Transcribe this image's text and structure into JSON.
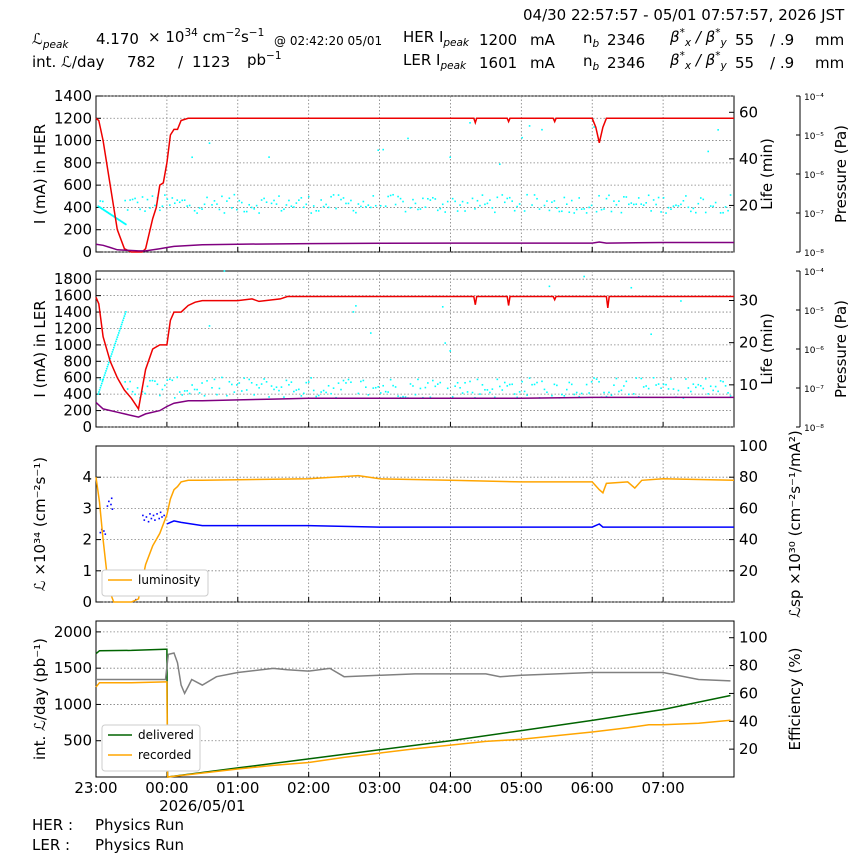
{
  "header": {
    "time_range": "04/30 22:57:57 - 05/01 07:57:57, 2026 JST",
    "lpeak_label": "ℒ",
    "lpeak_sub": "peak",
    "lpeak_value": "4.170",
    "lpeak_unit_prefix": "× 10",
    "lpeak_unit_exp": "34",
    "lpeak_unit_rest": "cm",
    "lpeak_unit_cm_exp": "−2",
    "lpeak_unit_s": "s",
    "lpeak_unit_s_exp": "−1",
    "lpeak_time": "@ 02:42:20 05/01",
    "intl_label": "int. ℒ/day",
    "intl_value1": "782",
    "intl_sep": "/",
    "intl_value2": "1123",
    "intl_unit": "pb",
    "intl_unit_exp": "−1",
    "her_label": "HER I",
    "her_sub": "peak",
    "her_value": "1200",
    "ler_label": "LER I",
    "ler_sub": "peak",
    "ler_value": "1601",
    "ma_unit": "mA",
    "nb_label": "n",
    "nb_sub": "b",
    "her_nb": "2346",
    "ler_nb": "2346",
    "beta_label": "β",
    "beta_x_sub": "x",
    "beta_y_sub": "y",
    "beta_star": "*",
    "beta_sep": "/",
    "her_beta_x": "55",
    "her_beta_y": "/ .9",
    "ler_beta_x": "55",
    "ler_beta_y": "/ .9",
    "mm_unit": "mm"
  },
  "footer": {
    "her_label": "HER :",
    "her_status": "Physics Run",
    "ler_label": "LER :",
    "ler_status": "Physics Run"
  },
  "colors": {
    "red": "#ee0000",
    "purple": "#800080",
    "cyan": "#00ffff",
    "orange": "#ffa500",
    "blue": "#0000ff",
    "green": "#006400",
    "gray": "#808080",
    "grid": "#808080"
  },
  "chart_data": [
    {
      "type": "line",
      "name": "her-panel",
      "ylabel": "I (mA) in HER",
      "ylim": [
        0,
        1400
      ],
      "yticks": [
        0,
        200,
        400,
        600,
        800,
        1000,
        1200,
        1400
      ],
      "y2label": "Life (min)",
      "y2lim": [
        0,
        67
      ],
      "y2ticks": [
        20,
        40,
        60
      ],
      "y3label": "Pressure (Pa)",
      "y3ticks": [
        "10⁻⁴",
        "10⁻⁵",
        "10⁻⁶",
        "10⁻⁷",
        "10⁻⁸"
      ],
      "xlim_hours": [
        -1.0,
        8.0
      ],
      "series": [
        {
          "color": "red",
          "x": [
            -1.0,
            -0.96,
            -0.9,
            -0.8,
            -0.7,
            -0.6,
            -0.5,
            -0.42,
            -0.35,
            -0.3,
            -0.2,
            -0.15,
            -0.1,
            -0.05,
            0.0,
            0.05,
            0.1,
            0.15,
            0.2,
            0.3,
            0.4,
            1.0,
            2.0,
            3.0,
            4.33,
            4.35,
            4.37,
            4.8,
            4.82,
            4.84,
            5.45,
            5.47,
            5.49,
            6.0,
            6.05,
            6.1,
            6.15,
            6.2,
            6.5,
            7.0,
            8.0
          ],
          "y": [
            1200,
            1180,
            1000,
            600,
            200,
            30,
            0,
            0,
            0,
            30,
            300,
            400,
            600,
            620,
            800,
            1050,
            1100,
            1100,
            1180,
            1200,
            1200,
            1200,
            1200,
            1200,
            1200,
            1160,
            1200,
            1200,
            1170,
            1200,
            1200,
            1170,
            1200,
            1200,
            1120,
            980,
            1120,
            1200,
            1200,
            1200,
            1200
          ]
        },
        {
          "color": "purple",
          "x": [
            -1.0,
            -0.9,
            -0.8,
            -0.7,
            -0.4,
            -0.3,
            -0.1,
            0.0,
            0.1,
            0.5,
            1.0,
            2.0,
            3.0,
            4.0,
            5.0,
            6.0,
            6.1,
            6.2,
            7.0,
            8.0
          ],
          "y": [
            70,
            60,
            40,
            20,
            10,
            10,
            30,
            40,
            50,
            65,
            70,
            75,
            78,
            80,
            80,
            80,
            90,
            80,
            85,
            85
          ]
        }
      ],
      "scatter_y2": {
        "color": "cyan",
        "base": 21,
        "spread": 4,
        "sparse": 36
      }
    },
    {
      "type": "line",
      "name": "ler-panel",
      "ylabel": "I (mA) in LER",
      "ylim": [
        0,
        1900
      ],
      "yticks": [
        0,
        200,
        400,
        600,
        800,
        1000,
        1200,
        1400,
        1600,
        1800
      ],
      "y2label": "Life (min)",
      "y2lim": [
        0,
        37
      ],
      "y2ticks": [
        10,
        20,
        30
      ],
      "y3label": "Pressure (Pa)",
      "y3ticks": [
        "10⁻⁴",
        "10⁻⁵",
        "10⁻⁶",
        "10⁻⁷",
        "10⁻⁸"
      ],
      "xlim_hours": [
        -1.0,
        8.0
      ],
      "series": [
        {
          "color": "red",
          "x": [
            -1.0,
            -0.96,
            -0.9,
            -0.8,
            -0.7,
            -0.6,
            -0.5,
            -0.4,
            -0.3,
            -0.2,
            -0.1,
            0.0,
            0.05,
            0.1,
            0.15,
            0.2,
            0.3,
            0.4,
            0.5,
            1.0,
            1.2,
            1.3,
            1.6,
            1.7,
            2.0,
            3.0,
            4.33,
            4.35,
            4.37,
            4.8,
            4.82,
            4.84,
            5.45,
            5.47,
            5.49,
            6.2,
            6.22,
            6.24,
            7.0,
            8.0
          ],
          "y": [
            1580,
            1500,
            1100,
            800,
            600,
            450,
            350,
            220,
            700,
            950,
            1000,
            1000,
            1300,
            1400,
            1400,
            1400,
            1480,
            1520,
            1540,
            1540,
            1560,
            1530,
            1560,
            1590,
            1590,
            1590,
            1590,
            1490,
            1590,
            1590,
            1480,
            1590,
            1590,
            1550,
            1590,
            1590,
            1450,
            1590,
            1590,
            1590
          ]
        },
        {
          "color": "purple",
          "x": [
            -1.0,
            -0.9,
            -0.7,
            -0.5,
            -0.4,
            -0.3,
            -0.1,
            0.0,
            0.1,
            0.3,
            0.5,
            1.0,
            1.5,
            2.0,
            3.0,
            4.0,
            5.0,
            6.0,
            7.0,
            8.0
          ],
          "y": [
            300,
            220,
            180,
            140,
            120,
            160,
            200,
            250,
            290,
            320,
            320,
            330,
            340,
            350,
            350,
            350,
            350,
            360,
            360,
            360
          ]
        }
      ],
      "scatter_y2": {
        "color": "cyan",
        "base": 9.5,
        "spread": 2.5,
        "sparse": 18
      }
    },
    {
      "type": "line",
      "name": "lumi-panel",
      "ylabel": "ℒ ×10³⁴ (cm⁻²s⁻¹)",
      "ylim": [
        0,
        5
      ],
      "yticks": [
        0,
        1,
        2,
        3,
        4
      ],
      "y2label": "ℒsp ×10³⁰ (cm⁻²s⁻¹/mA²)",
      "y2lim": [
        0,
        100
      ],
      "y2ticks": [
        20,
        40,
        60,
        80,
        100
      ],
      "xlim_hours": [
        -1.0,
        8.0
      ],
      "legend": [
        "luminosity"
      ],
      "legend_position": "lower-left",
      "series": [
        {
          "name": "luminosity",
          "color": "orange",
          "x": [
            -1.0,
            -0.95,
            -0.9,
            -0.85,
            -0.8,
            -0.75,
            -0.7,
            -0.5,
            -0.4,
            -0.3,
            -0.2,
            -0.1,
            0.0,
            0.05,
            0.1,
            0.15,
            0.2,
            0.3,
            0.5,
            1.0,
            2.0,
            2.7,
            3.0,
            4.0,
            5.0,
            6.0,
            6.1,
            6.15,
            6.2,
            6.5,
            6.6,
            6.7,
            7.0,
            8.0
          ],
          "y": [
            4.0,
            3.2,
            2.0,
            1.0,
            0.3,
            0.0,
            0.0,
            0.0,
            0.1,
            1.2,
            1.8,
            2.2,
            2.8,
            3.3,
            3.6,
            3.7,
            3.85,
            3.9,
            3.9,
            3.92,
            3.95,
            4.05,
            3.95,
            3.9,
            3.85,
            3.85,
            3.6,
            3.5,
            3.8,
            3.85,
            3.65,
            3.9,
            3.95,
            3.9
          ]
        },
        {
          "name": "specific",
          "color": "blue",
          "x": [
            0.0,
            0.05,
            0.1,
            0.2,
            0.5,
            1.0,
            2.0,
            3.0,
            4.0,
            5.0,
            6.0,
            6.1,
            6.15,
            6.2,
            7.0,
            8.0
          ],
          "y2": [
            50,
            51,
            52,
            51,
            49,
            49,
            49,
            48,
            48,
            48,
            48,
            50,
            48,
            48,
            48,
            48
          ]
        }
      ],
      "blue_scatter_y2": [
        [
          -0.95,
          45
        ],
        [
          -0.93,
          47
        ],
        [
          -0.9,
          46
        ],
        [
          -0.88,
          44
        ],
        [
          -0.85,
          62
        ],
        [
          -0.83,
          65
        ],
        [
          -0.8,
          63
        ],
        [
          -0.79,
          67
        ],
        [
          -0.78,
          60
        ],
        [
          -0.45,
          2
        ],
        [
          -0.4,
          5
        ],
        [
          -0.35,
          56
        ],
        [
          -0.33,
          53
        ],
        [
          -0.3,
          55
        ],
        [
          -0.27,
          52
        ],
        [
          -0.25,
          57
        ],
        [
          -0.23,
          54
        ],
        [
          -0.2,
          56
        ],
        [
          -0.18,
          53
        ],
        [
          -0.15,
          57
        ],
        [
          -0.12,
          54
        ],
        [
          -0.1,
          58
        ],
        [
          -0.08,
          55
        ],
        [
          -0.05,
          56
        ]
      ]
    },
    {
      "type": "line",
      "name": "intlumi-panel",
      "ylabel": "int. ℒ/day (pb⁻¹)",
      "ylim": [
        0,
        2150
      ],
      "yticks": [
        500,
        1000,
        1500,
        2000
      ],
      "y2label": "Efficiency (%)",
      "y2lim": [
        0,
        112
      ],
      "y2ticks": [
        20,
        40,
        60,
        80,
        100
      ],
      "xlim_hours": [
        -1.0,
        8.0
      ],
      "xticks": [
        "23:00",
        "00:00",
        "01:00",
        "02:00",
        "03:00",
        "04:00",
        "05:00",
        "06:00",
        "07:00"
      ],
      "xdate_label": "2026/05/01",
      "legend": [
        "delivered",
        "recorded"
      ],
      "legend_position": "lower-left",
      "series": [
        {
          "name": "delivered",
          "color": "green",
          "x": [
            -1.0,
            -0.95,
            -0.5,
            -0.02,
            0.0,
            0.01,
            1.0,
            2.0,
            3.0,
            4.0,
            5.0,
            6.0,
            7.0,
            7.95
          ],
          "y": [
            1700,
            1740,
            1745,
            1760,
            1760,
            0,
            125,
            250,
            375,
            500,
            640,
            780,
            930,
            1123
          ]
        },
        {
          "name": "recorded",
          "color": "orange",
          "x": [
            -1.0,
            -0.95,
            -0.5,
            -0.02,
            0.0,
            0.01,
            1.0,
            1.5,
            2.0,
            2.5,
            3.0,
            3.5,
            4.0,
            4.5,
            5.0,
            5.5,
            6.0,
            6.5,
            6.8,
            7.0,
            7.5,
            7.95
          ],
          "y": [
            1240,
            1300,
            1300,
            1310,
            1310,
            0,
            110,
            160,
            200,
            270,
            330,
            390,
            440,
            490,
            520,
            570,
            620,
            680,
            720,
            720,
            740,
            782
          ]
        },
        {
          "name": "efficiency",
          "color": "gray",
          "x": [
            -1.0,
            -0.5,
            -0.02,
            0.02,
            0.1,
            0.15,
            0.2,
            0.25,
            0.3,
            0.35,
            0.5,
            0.7,
            1.0,
            1.5,
            1.7,
            2.0,
            2.3,
            2.5,
            3.0,
            3.5,
            4.0,
            4.5,
            4.7,
            5.0,
            5.5,
            6.0,
            6.5,
            7.0,
            7.5,
            7.95
          ],
          "y2": [
            70,
            70,
            70,
            88,
            89,
            82,
            66,
            60,
            65,
            70,
            66,
            72,
            75,
            78,
            77,
            76,
            78,
            72,
            73,
            74,
            74,
            74,
            72,
            73,
            74,
            75,
            75,
            75,
            70,
            69
          ]
        }
      ]
    }
  ]
}
